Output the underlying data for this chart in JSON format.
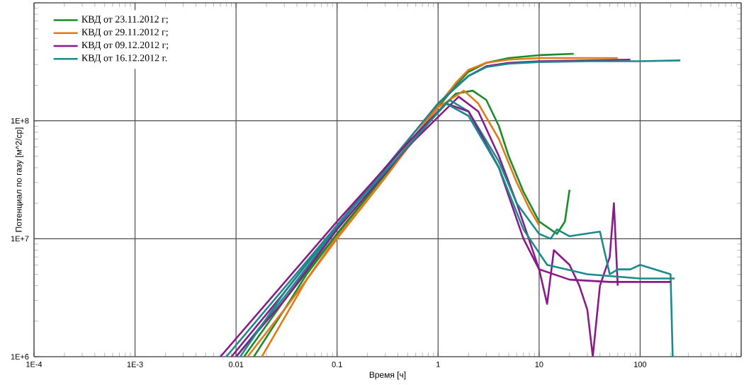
{
  "chart_data": {
    "type": "line",
    "xlabel": "Время [ч]",
    "ylabel": "Потенциал по газу [м^2/ср]",
    "log": "xy",
    "grid": true,
    "legend": "top left",
    "xlim": [
      0.0001,
      1000
    ],
    "ylim": [
      1000000,
      1000000000
    ],
    "xticks": [
      {
        "value": 0.0001,
        "label": "1E-4"
      },
      {
        "value": 0.001,
        "label": "1E-3"
      },
      0.01,
      0.1,
      1,
      10,
      100,
      {
        "value": 1000,
        "label": null
      }
    ],
    "yticks": [
      {
        "value": 1000000,
        "label": "1E+6"
      },
      {
        "value": 10000000,
        "label": "1E+7"
      },
      {
        "value": 100000000,
        "label": "1E+8"
      },
      {
        "value": 1000000000,
        "label": null
      }
    ],
    "series": [
      {
        "name": "КВД от 23.11.2012 г;",
        "color": "#1a8a2a",
        "x": [
          0.015,
          0.03,
          0.05,
          0.1,
          0.2,
          0.5,
          1,
          1.5,
          2,
          3,
          5,
          10,
          22
        ],
        "values": [
          1000000,
          2500000,
          5000000,
          11000000,
          23000000,
          60000000,
          130000000,
          200000000,
          260000000,
          310000000,
          340000000,
          360000000,
          370000000
        ]
      },
      {
        "name": "КВД от 29.11.2012 г;",
        "color": "#e07b18",
        "x": [
          0.018,
          0.05,
          0.1,
          0.3,
          1,
          1.5,
          2,
          3,
          5,
          10,
          30,
          60
        ],
        "values": [
          1000000,
          4500000,
          10500000,
          35000000,
          135000000,
          210000000,
          270000000,
          310000000,
          330000000,
          340000000,
          340000000,
          340000000
        ]
      },
      {
        "name": "КВД от 09.12.2012 г;",
        "color": "#8a1a8a",
        "x": [
          0.009,
          0.03,
          0.1,
          0.3,
          1,
          2,
          3,
          5,
          10,
          30,
          80
        ],
        "values": [
          1000000,
          3500000,
          13000000,
          40000000,
          140000000,
          240000000,
          290000000,
          310000000,
          320000000,
          325000000,
          330000000
        ]
      },
      {
        "name": "КВД от 16.12.2012 г.",
        "color": "#1a8a8a",
        "x": [
          0.01,
          0.03,
          0.1,
          0.3,
          1,
          2,
          3,
          5,
          10,
          30,
          100,
          250
        ],
        "values": [
          1000000,
          3200000,
          12500000,
          40000000,
          140000000,
          240000000,
          285000000,
          305000000,
          315000000,
          320000000,
          320000000,
          325000000
        ]
      },
      {
        "color": "#1a8a2a",
        "x": [
          0.012,
          0.03,
          0.1,
          0.3,
          1,
          1.5,
          2.2,
          3,
          4,
          5,
          7,
          10,
          15,
          18,
          20
        ],
        "values": [
          1000000,
          3000000,
          11000000,
          35000000,
          120000000,
          170000000,
          180000000,
          150000000,
          90000000,
          50000000,
          25000000,
          14000000,
          11000000,
          14000000,
          26000000
        ]
      },
      {
        "color": "#e07b18",
        "x": [
          0.013,
          0.03,
          0.1,
          0.3,
          1,
          1.8,
          2.5,
          4,
          6,
          8,
          10
        ],
        "values": [
          1000000,
          2500000,
          10000000,
          33000000,
          130000000,
          180000000,
          140000000,
          70000000,
          30000000,
          18000000,
          13000000
        ]
      },
      {
        "color": "#8a1a8a",
        "x": [
          0.01,
          0.03,
          0.1,
          0.5,
          1.6,
          2.5,
          4,
          6,
          10,
          12,
          14,
          20,
          25,
          30,
          34,
          40,
          50,
          55,
          60
        ],
        "values": [
          1000000,
          3000000,
          12000000,
          60000000,
          160000000,
          120000000,
          50000000,
          20000000,
          5500000,
          2800000,
          8000000,
          6000000,
          4000000,
          2500000,
          1000000,
          4000000,
          7000000,
          20000000,
          4000000
        ]
      },
      {
        "color": "#1a8a8a",
        "x": [
          0.011,
          0.03,
          0.1,
          0.5,
          1.3,
          2,
          4,
          6,
          10,
          13,
          15,
          20,
          40,
          50,
          60,
          80,
          100,
          200,
          210
        ],
        "values": [
          1000000,
          3500000,
          13000000,
          65000000,
          150000000,
          120000000,
          45000000,
          20000000,
          11000000,
          10000000,
          12000000,
          10500000,
          11500000,
          5000000,
          5500000,
          5500000,
          6000000,
          5000000,
          1000000
        ]
      },
      {
        "color": "#8a1a8a",
        "x": [
          0.007,
          0.1,
          0.5,
          1.2,
          2,
          4,
          7,
          10,
          20,
          50,
          200
        ],
        "values": [
          1000000,
          14000000,
          65000000,
          140000000,
          120000000,
          40000000,
          10000000,
          5500000,
          4500000,
          4300000,
          4300000
        ]
      },
      {
        "color": "#1a8a8a",
        "x": [
          0.008,
          0.1,
          1.2,
          2,
          4,
          7,
          12,
          30,
          100,
          220
        ],
        "values": [
          1000000,
          13000000,
          140000000,
          110000000,
          40000000,
          12000000,
          6000000,
          5000000,
          4600000,
          4600000
        ]
      }
    ]
  }
}
